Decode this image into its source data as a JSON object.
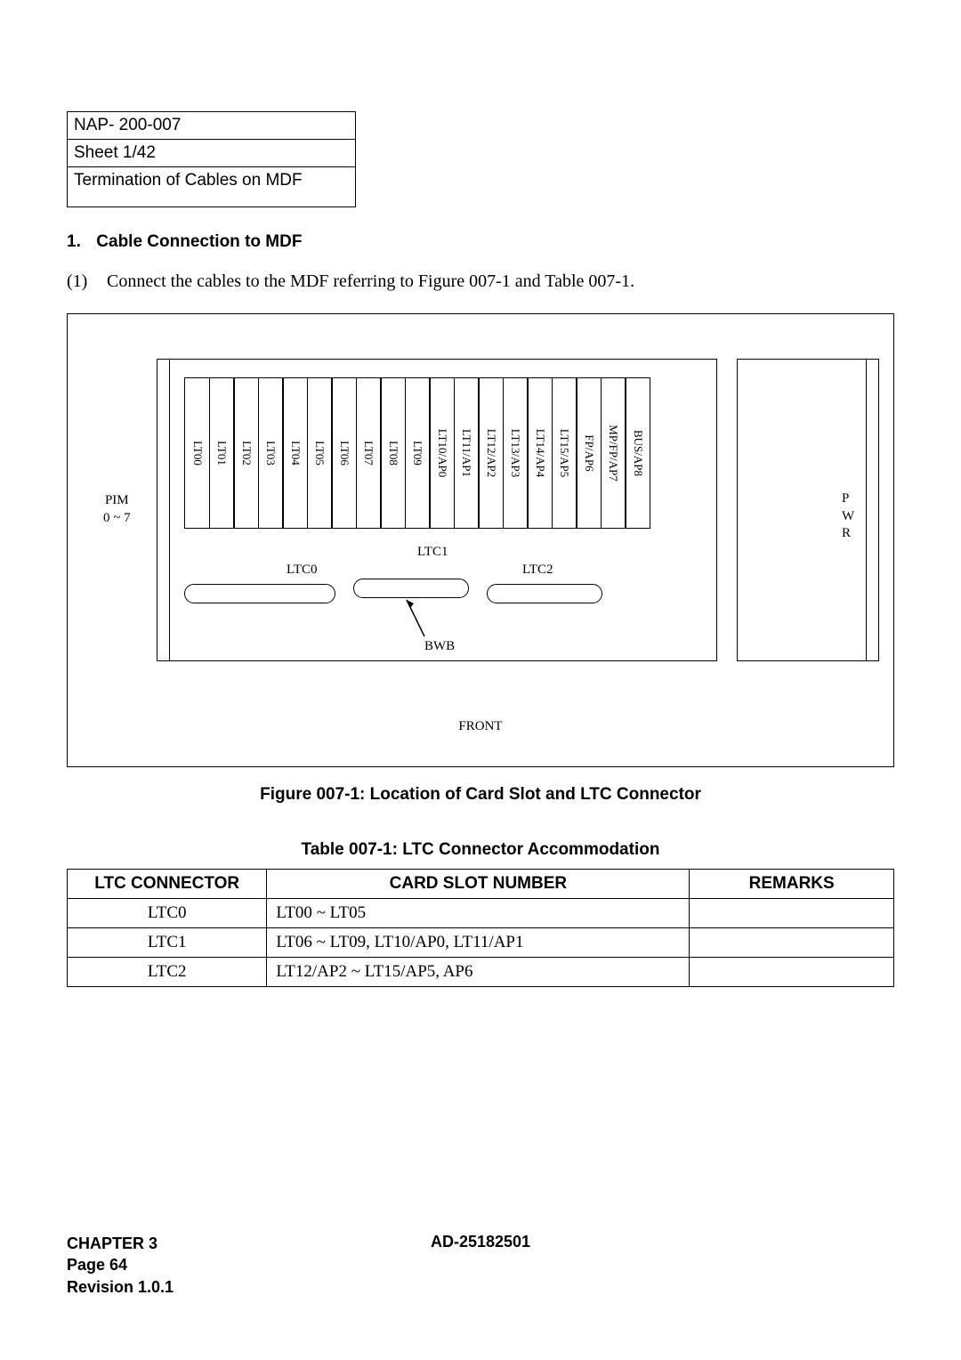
{
  "header": {
    "nap": "NAP- 200-007",
    "sheet": "Sheet 1/42",
    "title": "Termination of Cables on MDF"
  },
  "section": {
    "num": "1.",
    "title": "Cable Connection to MDF"
  },
  "para": {
    "num": "(1)",
    "text": "Connect the cables to the MDF referring to Figure 007-1 and Table 007-1."
  },
  "figure": {
    "pim_label_l1": "PIM",
    "pim_label_l2": "0 ~ 7",
    "slots": [
      "LT00",
      "LT01",
      "LT02",
      "LT03",
      "LT04",
      "LT05",
      "LT06",
      "LT07",
      "LT08",
      "LT09",
      "LT10/AP0",
      "LT11/AP1",
      "LT12/AP2",
      "LT13/AP3",
      "LT14/AP4",
      "LT15/AP5",
      "FP/AP6",
      "MP/FP/AP7",
      "BUS/AP8"
    ],
    "ltc0": "LTC0",
    "ltc1": "LTC1",
    "ltc2": "LTC2",
    "bwb": "BWB",
    "pwr_p": "P",
    "pwr_w": "W",
    "pwr_r": "R",
    "front": "FRONT",
    "caption": "Figure 007-1:  Location of Card Slot and LTC Connector"
  },
  "table": {
    "caption": "Table 007-1:  LTC Connector Accommodation",
    "columns": [
      "LTC CONNECTOR",
      "CARD SLOT NUMBER",
      "REMARKS"
    ],
    "rows": [
      [
        "LTC0",
        "LT00 ~ LT05",
        ""
      ],
      [
        "LTC1",
        "LT06 ~ LT09, LT10/AP0, LT11/AP1",
        ""
      ],
      [
        "LTC2",
        "LT12/AP2 ~ LT15/AP5, AP6",
        ""
      ]
    ]
  },
  "footer": {
    "chapter": "CHAPTER 3",
    "page": "Page 64",
    "revision": "Revision 1.0.1",
    "docnum": "AD-25182501"
  }
}
